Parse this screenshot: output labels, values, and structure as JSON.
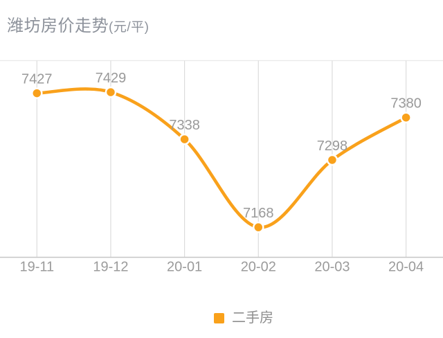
{
  "header": {
    "title": "潍坊房价走势",
    "unit": "(元/平)"
  },
  "legend": {
    "label": "二手房"
  },
  "colors": {
    "series": "#f9a11b",
    "top_border": "#e9e9e9",
    "gridline": "#dcdcdc",
    "axis_line": "#c6c6c6",
    "value_label": "#999999",
    "tick_label": "#9b9b9b",
    "title_text": "#8d929b",
    "background": "#ffffff"
  },
  "chart_data": {
    "type": "line",
    "title": "潍坊房价走势",
    "unit": "元/平",
    "categories": [
      "19-11",
      "19-12",
      "20-01",
      "20-02",
      "20-03",
      "20-04"
    ],
    "series": [
      {
        "name": "二手房",
        "values": [
          7427,
          7429,
          7338,
          7168,
          7298,
          7380
        ]
      }
    ],
    "ylim": [
      7110,
      7490
    ],
    "smooth": true,
    "show_point_labels": true,
    "grid": "vertical-only",
    "legend_position": "bottom-center"
  }
}
